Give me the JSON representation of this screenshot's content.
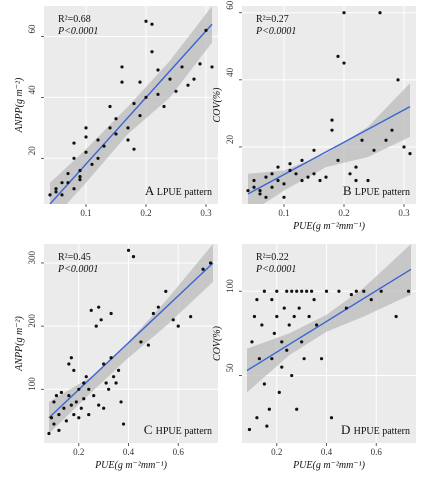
{
  "chart_data": [
    {
      "type": "scatter",
      "panel_letter": "A",
      "panel_caption": "LPUE pattern",
      "stat_r2": "R²=0.68",
      "stat_p": "P<0.0001",
      "xlabel": "",
      "ylabel": "ANPP(g m⁻²)",
      "xlim": [
        0.03,
        0.32
      ],
      "ylim": [
        5,
        70
      ],
      "xticks": [
        0.1,
        0.2,
        0.3
      ],
      "yticks": [
        20,
        40,
        60
      ],
      "fit": {
        "x": [
          0.04,
          0.31
        ],
        "y": [
          5,
          64
        ]
      },
      "band": {
        "x": [
          0.04,
          0.1,
          0.17,
          0.24,
          0.31
        ],
        "upper": [
          12,
          23,
          37,
          52,
          70
        ],
        "lower": [
          -1,
          12,
          28,
          40,
          58
        ]
      },
      "points": [
        [
          0.04,
          8
        ],
        [
          0.05,
          9
        ],
        [
          0.05,
          10
        ],
        [
          0.06,
          8
        ],
        [
          0.06,
          12
        ],
        [
          0.07,
          15
        ],
        [
          0.07,
          12
        ],
        [
          0.08,
          10
        ],
        [
          0.08,
          20
        ],
        [
          0.08,
          25
        ],
        [
          0.09,
          13
        ],
        [
          0.09,
          16
        ],
        [
          0.09,
          14
        ],
        [
          0.1,
          30
        ],
        [
          0.1,
          27
        ],
        [
          0.1,
          22
        ],
        [
          0.11,
          18
        ],
        [
          0.12,
          20
        ],
        [
          0.12,
          26
        ],
        [
          0.13,
          24
        ],
        [
          0.14,
          30
        ],
        [
          0.14,
          37
        ],
        [
          0.15,
          28
        ],
        [
          0.15,
          33
        ],
        [
          0.16,
          50
        ],
        [
          0.16,
          45
        ],
        [
          0.17,
          26
        ],
        [
          0.17,
          30
        ],
        [
          0.18,
          23
        ],
        [
          0.18,
          38
        ],
        [
          0.19,
          34
        ],
        [
          0.19,
          45
        ],
        [
          0.2,
          40
        ],
        [
          0.2,
          65
        ],
        [
          0.21,
          64
        ],
        [
          0.21,
          55
        ],
        [
          0.22,
          41
        ],
        [
          0.22,
          49
        ],
        [
          0.23,
          37
        ],
        [
          0.24,
          46
        ],
        [
          0.25,
          42
        ],
        [
          0.26,
          50
        ],
        [
          0.27,
          44
        ],
        [
          0.28,
          46
        ],
        [
          0.29,
          51
        ],
        [
          0.3,
          62
        ],
        [
          0.31,
          50
        ]
      ]
    },
    {
      "type": "scatter",
      "panel_letter": "B",
      "panel_caption": "LPUE pattern",
      "stat_r2": "R²=0.27",
      "stat_p": "P<0.0001",
      "xlabel": "PUE(g m⁻²mm⁻¹)",
      "ylabel": "COV(%)",
      "xlim": [
        0.03,
        0.32
      ],
      "ylim": [
        3,
        62
      ],
      "xticks": [
        0.1,
        0.2,
        0.3
      ],
      "yticks": [
        20,
        40,
        60
      ],
      "fit": {
        "x": [
          0.04,
          0.31
        ],
        "y": [
          6,
          32
        ]
      },
      "band": {
        "x": [
          0.04,
          0.1,
          0.17,
          0.24,
          0.31
        ],
        "upper": [
          12,
          13,
          18,
          26,
          39
        ],
        "lower": [
          0,
          7,
          14,
          17,
          23
        ]
      },
      "points": [
        [
          0.04,
          7
        ],
        [
          0.05,
          8
        ],
        [
          0.05,
          10
        ],
        [
          0.06,
          6
        ],
        [
          0.06,
          7
        ],
        [
          0.07,
          5
        ],
        [
          0.07,
          11
        ],
        [
          0.08,
          12
        ],
        [
          0.08,
          8
        ],
        [
          0.09,
          10
        ],
        [
          0.09,
          14
        ],
        [
          0.1,
          5
        ],
        [
          0.1,
          9
        ],
        [
          0.11,
          13
        ],
        [
          0.11,
          15
        ],
        [
          0.12,
          12
        ],
        [
          0.13,
          16
        ],
        [
          0.13,
          10
        ],
        [
          0.14,
          11
        ],
        [
          0.15,
          12
        ],
        [
          0.15,
          19
        ],
        [
          0.16,
          10
        ],
        [
          0.17,
          11
        ],
        [
          0.18,
          25
        ],
        [
          0.18,
          28
        ],
        [
          0.19,
          16
        ],
        [
          0.19,
          47
        ],
        [
          0.2,
          45
        ],
        [
          0.2,
          60
        ],
        [
          0.21,
          12
        ],
        [
          0.22,
          14
        ],
        [
          0.22,
          10
        ],
        [
          0.23,
          22
        ],
        [
          0.24,
          10
        ],
        [
          0.25,
          19
        ],
        [
          0.26,
          60
        ],
        [
          0.27,
          22
        ],
        [
          0.28,
          25
        ],
        [
          0.29,
          40
        ],
        [
          0.3,
          20
        ],
        [
          0.31,
          18
        ]
      ]
    },
    {
      "type": "scatter",
      "panel_letter": "C",
      "panel_caption": "HPUE pattern",
      "stat_r2": "R²=0.45",
      "stat_p": "P<0.0001",
      "xlabel": "PUE(g m⁻²mm⁻¹)",
      "ylabel": "ANPP(g m⁻²)",
      "xlim": [
        0.06,
        0.76
      ],
      "ylim": [
        15,
        330
      ],
      "xticks": [
        0.2,
        0.4,
        0.6
      ],
      "yticks": [
        100,
        200,
        300
      ],
      "fit": {
        "x": [
          0.08,
          0.74
        ],
        "y": [
          55,
          300
        ]
      },
      "band": {
        "x": [
          0.08,
          0.25,
          0.4,
          0.55,
          0.74
        ],
        "upper": [
          80,
          120,
          175,
          240,
          330
        ],
        "lower": [
          30,
          95,
          150,
          200,
          270
        ]
      },
      "points": [
        [
          0.08,
          30
        ],
        [
          0.09,
          55
        ],
        [
          0.1,
          80
        ],
        [
          0.1,
          45
        ],
        [
          0.11,
          90
        ],
        [
          0.12,
          60
        ],
        [
          0.12,
          35
        ],
        [
          0.13,
          95
        ],
        [
          0.14,
          70
        ],
        [
          0.15,
          50
        ],
        [
          0.16,
          140
        ],
        [
          0.16,
          90
        ],
        [
          0.17,
          150
        ],
        [
          0.17,
          75
        ],
        [
          0.18,
          130
        ],
        [
          0.18,
          60
        ],
        [
          0.19,
          80
        ],
        [
          0.2,
          100
        ],
        [
          0.2,
          55
        ],
        [
          0.21,
          70
        ],
        [
          0.22,
          110
        ],
        [
          0.22,
          85
        ],
        [
          0.23,
          120
        ],
        [
          0.24,
          60
        ],
        [
          0.24,
          100
        ],
        [
          0.25,
          225
        ],
        [
          0.26,
          90
        ],
        [
          0.27,
          200
        ],
        [
          0.28,
          75
        ],
        [
          0.28,
          230
        ],
        [
          0.29,
          210
        ],
        [
          0.3,
          70
        ],
        [
          0.3,
          140
        ],
        [
          0.31,
          110
        ],
        [
          0.32,
          100
        ],
        [
          0.33,
          220
        ],
        [
          0.33,
          150
        ],
        [
          0.34,
          120
        ],
        [
          0.35,
          110
        ],
        [
          0.36,
          130
        ],
        [
          0.37,
          80
        ],
        [
          0.38,
          45
        ],
        [
          0.4,
          320
        ],
        [
          0.42,
          310
        ],
        [
          0.45,
          175
        ],
        [
          0.48,
          170
        ],
        [
          0.5,
          220
        ],
        [
          0.52,
          230
        ],
        [
          0.55,
          255
        ],
        [
          0.58,
          210
        ],
        [
          0.6,
          200
        ],
        [
          0.65,
          215
        ],
        [
          0.7,
          290
        ],
        [
          0.73,
          300
        ]
      ]
    },
    {
      "type": "scatter",
      "panel_letter": "D",
      "panel_caption": "HPUE pattern",
      "stat_r2": "R²=0.22",
      "stat_p": "P<0.0001",
      "xlabel": "PUE(g m⁻²mm⁻¹)",
      "ylabel": "COV(%)",
      "xlim": [
        0.06,
        0.76
      ],
      "ylim": [
        10,
        128
      ],
      "xticks": [
        0.2,
        0.4,
        0.6
      ],
      "yticks": [
        50,
        100
      ],
      "fit": {
        "x": [
          0.08,
          0.74
        ],
        "y": [
          53,
          113
        ]
      },
      "band": {
        "x": [
          0.08,
          0.25,
          0.4,
          0.55,
          0.74
        ],
        "upper": [
          66,
          75,
          86,
          102,
          128
        ],
        "lower": [
          40,
          62,
          76,
          85,
          98
        ]
      },
      "points": [
        [
          0.09,
          18
        ],
        [
          0.1,
          70
        ],
        [
          0.11,
          85
        ],
        [
          0.12,
          95
        ],
        [
          0.12,
          25
        ],
        [
          0.13,
          60
        ],
        [
          0.14,
          80
        ],
        [
          0.15,
          45
        ],
        [
          0.15,
          100
        ],
        [
          0.16,
          20
        ],
        [
          0.17,
          30
        ],
        [
          0.18,
          95
        ],
        [
          0.18,
          60
        ],
        [
          0.19,
          75
        ],
        [
          0.2,
          100
        ],
        [
          0.2,
          85
        ],
        [
          0.21,
          40
        ],
        [
          0.22,
          55
        ],
        [
          0.22,
          70
        ],
        [
          0.23,
          90
        ],
        [
          0.24,
          100
        ],
        [
          0.24,
          65
        ],
        [
          0.25,
          80
        ],
        [
          0.26,
          100
        ],
        [
          0.26,
          50
        ],
        [
          0.27,
          85
        ],
        [
          0.28,
          100
        ],
        [
          0.28,
          30
        ],
        [
          0.29,
          90
        ],
        [
          0.3,
          70
        ],
        [
          0.3,
          100
        ],
        [
          0.31,
          60
        ],
        [
          0.32,
          100
        ],
        [
          0.33,
          85
        ],
        [
          0.34,
          100
        ],
        [
          0.35,
          95
        ],
        [
          0.36,
          80
        ],
        [
          0.38,
          60
        ],
        [
          0.4,
          100
        ],
        [
          0.42,
          25
        ],
        [
          0.45,
          100
        ],
        [
          0.48,
          90
        ],
        [
          0.5,
          98
        ],
        [
          0.52,
          100
        ],
        [
          0.55,
          100
        ],
        [
          0.58,
          95
        ],
        [
          0.62,
          100
        ],
        [
          0.68,
          85
        ],
        [
          0.73,
          100
        ]
      ]
    }
  ]
}
